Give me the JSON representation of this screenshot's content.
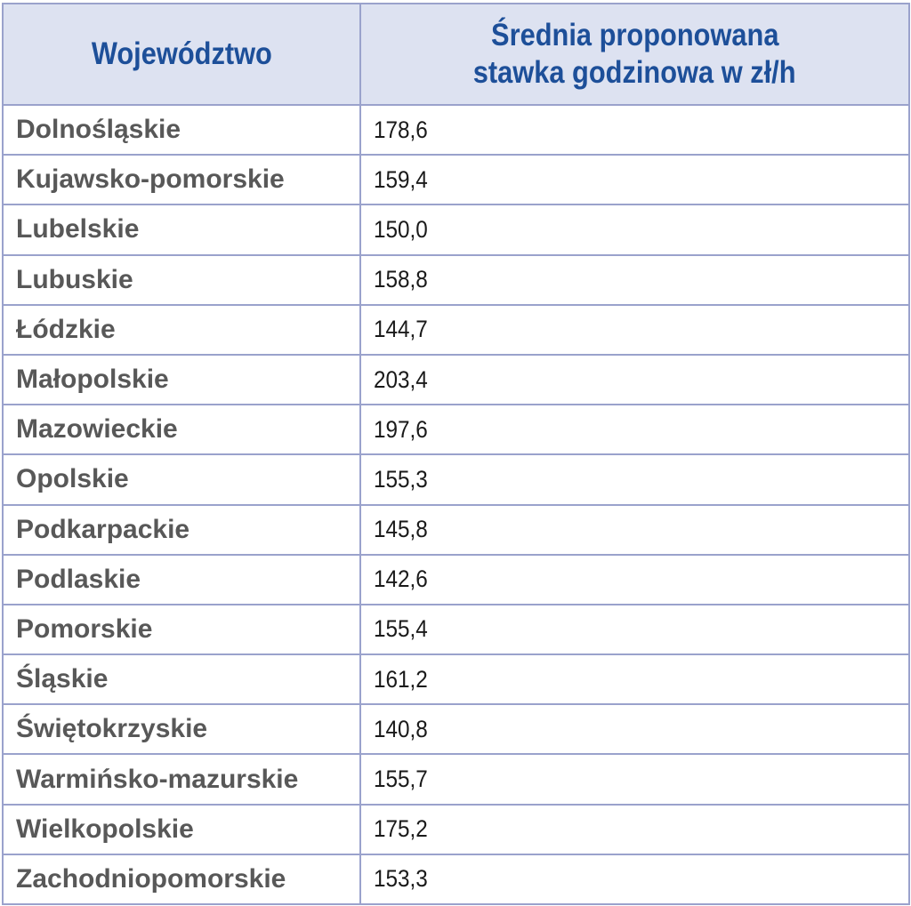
{
  "chart_data": {
    "type": "table",
    "columns": [
      "Województwo",
      "Średnia proponowana stawka godzinowa w zł/h"
    ],
    "header": {
      "col1": "Województwo",
      "col2_line1": "Średnia proponowana",
      "col2_line2": "stawka godzinowa w zł/h"
    },
    "rows": [
      {
        "region": "Dolnośląskie",
        "value": "178,6"
      },
      {
        "region": "Kujawsko-pomorskie",
        "value": "159,4"
      },
      {
        "region": "Lubelskie",
        "value": "150,0"
      },
      {
        "region": "Lubuskie",
        "value": "158,8"
      },
      {
        "region": "Łódzkie",
        "value": "144,7"
      },
      {
        "region": "Małopolskie",
        "value": "203,4"
      },
      {
        "region": "Mazowieckie",
        "value": "197,6"
      },
      {
        "region": "Opolskie",
        "value": "155,3"
      },
      {
        "region": "Podkarpackie",
        "value": "145,8"
      },
      {
        "region": "Podlaskie",
        "value": "142,6"
      },
      {
        "region": "Pomorskie",
        "value": "155,4"
      },
      {
        "region": "Śląskie",
        "value": "161,2"
      },
      {
        "region": "Świętokrzyskie",
        "value": "140,8"
      },
      {
        "region": "Warmińsko-mazurskie",
        "value": "155,7"
      },
      {
        "region": "Wielkopolskie",
        "value": "175,2"
      },
      {
        "region": "Zachodniopomorskie",
        "value": "153,3"
      }
    ]
  },
  "colors": {
    "header_bg": "#dde2f1",
    "header_text": "#1d4f99",
    "grid": "#9aa2cc",
    "region_text": "#585858",
    "value_text": "#1a1a1a"
  }
}
